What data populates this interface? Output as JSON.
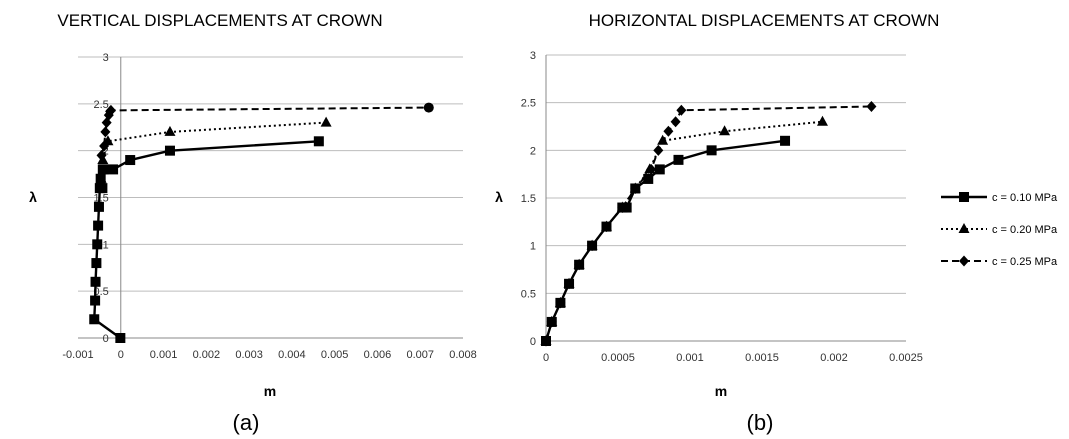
{
  "chart_data": [
    {
      "type": "line",
      "title": "VERTICAL DISPLACEMENTS AT CROWN",
      "xlabel": "m",
      "ylabel": "λ",
      "caption": "(a)",
      "xlim": [
        -0.001,
        0.008
      ],
      "ylim": [
        0,
        3
      ],
      "xticks": [
        "-0.001",
        "0",
        "0.001",
        "0.002",
        "0.003",
        "0.004",
        "0.005",
        "0.006",
        "0.007",
        "0.008"
      ],
      "yticks": [
        "0",
        "0.5",
        "1",
        "1.5",
        "2",
        "2.5",
        "3"
      ],
      "grid": true,
      "series": [
        {
          "name": "c = 0.10 MPa",
          "style": "solid",
          "marker": "square",
          "x": [
            -1e-05,
            -0.00062,
            -0.0006,
            -0.00059,
            -0.00057,
            -0.00055,
            -0.00053,
            -0.00051,
            -0.00049,
            -0.00047,
            -0.00042,
            -0.00043,
            -0.0004,
            -0.00018,
            0.00022,
            0.00115,
            0.00463
          ],
          "y": [
            0,
            0.2,
            0.4,
            0.6,
            0.8,
            1.0,
            1.2,
            1.4,
            1.6,
            1.7,
            1.8,
            1.6,
            1.8,
            1.8,
            1.9,
            2.0,
            2.1
          ]
        },
        {
          "name": "c = 0.20 MPa",
          "style": "dotted",
          "marker": "triangle",
          "x": [
            -0.00046,
            -0.00042,
            -0.0003,
            0.00115,
            0.0048
          ],
          "y": [
            1.7,
            1.9,
            2.1,
            2.2,
            2.3
          ]
        },
        {
          "name": "c = 0.25 MPa",
          "style": "dashed",
          "marker": "diamond",
          "x": [
            -0.00045,
            -0.00039,
            -0.00036,
            -0.00033,
            -0.00028,
            -0.00025,
            -0.00023,
            0.0072
          ],
          "y": [
            1.95,
            2.05,
            2.2,
            2.3,
            2.38,
            2.42,
            2.43,
            2.46
          ]
        }
      ]
    },
    {
      "type": "line",
      "title": "HORIZONTAL DISPLACEMENTS AT CROWN",
      "xlabel": "m",
      "ylabel": "λ",
      "caption": "(b)",
      "xlim": [
        0,
        0.0025
      ],
      "ylim": [
        0,
        3
      ],
      "xticks": [
        "0",
        "0.0005",
        "0.001",
        "0.0015",
        "0.002",
        "0.0025"
      ],
      "yticks": [
        "0",
        "0.5",
        "1",
        "1.5",
        "2",
        "2.5",
        "3"
      ],
      "grid": true,
      "legend": "right",
      "series": [
        {
          "name": "c = 0.10 MPa",
          "style": "solid",
          "marker": "square",
          "x": [
            0,
            4e-05,
            0.0001,
            0.00016,
            0.00023,
            0.00032,
            0.00042,
            0.00053,
            0.00056,
            0.00062,
            0.00071,
            0.00079,
            0.00092,
            0.00115,
            0.00166
          ],
          "y": [
            0,
            0.2,
            0.4,
            0.6,
            0.8,
            1.0,
            1.2,
            1.4,
            1.4,
            1.6,
            1.7,
            1.8,
            1.9,
            2.0,
            2.1
          ]
        },
        {
          "name": "c = 0.20 MPa",
          "style": "dotted",
          "marker": "triangle",
          "x": [
            0,
            4e-05,
            0.0001,
            0.00016,
            0.00023,
            0.00032,
            0.00042,
            0.00053,
            0.00062,
            0.00072,
            0.00081,
            0.00124,
            0.00192
          ],
          "y": [
            0,
            0.2,
            0.4,
            0.6,
            0.8,
            1.0,
            1.2,
            1.4,
            1.6,
            1.8,
            2.1,
            2.2,
            2.3
          ]
        },
        {
          "name": "c = 0.25 MPa",
          "style": "dashed",
          "marker": "diamond",
          "x": [
            0,
            4e-05,
            0.0001,
            0.00016,
            0.00023,
            0.00032,
            0.00042,
            0.00053,
            0.00062,
            0.00073,
            0.00078,
            0.00085,
            0.0009,
            0.00094,
            0.00226
          ],
          "y": [
            0,
            0.2,
            0.4,
            0.6,
            0.8,
            1.0,
            1.2,
            1.4,
            1.6,
            1.8,
            2.0,
            2.2,
            2.3,
            2.42,
            2.46
          ]
        }
      ]
    }
  ]
}
